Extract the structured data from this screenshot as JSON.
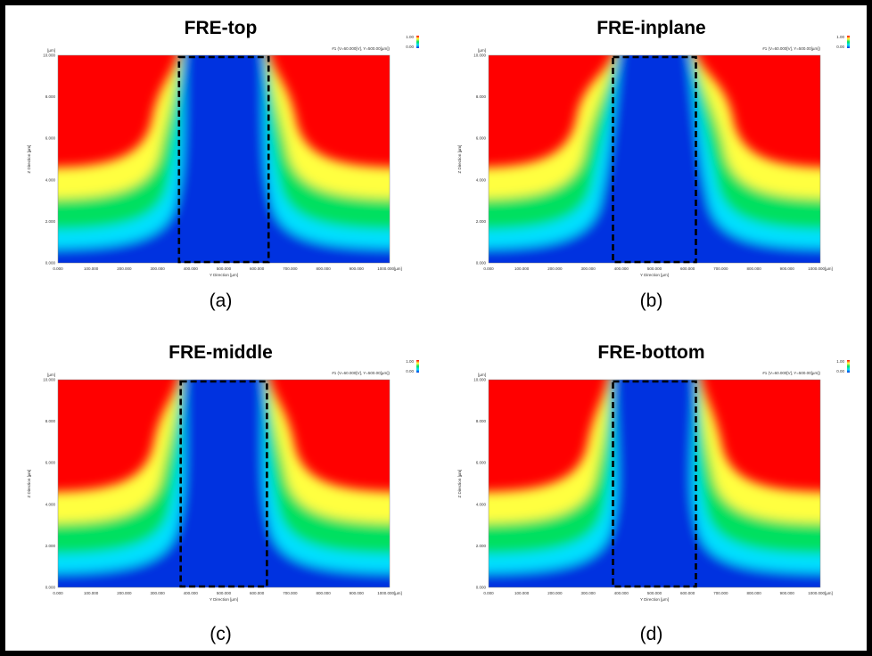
{
  "chart_data": [
    {
      "type": "heatmap",
      "title": "FRE-top",
      "caption": "(a)",
      "legend_text": "#1 (V=60.000[V], Y=500.00[µm])",
      "legend_range": [
        "1.00",
        "0.00"
      ],
      "xlabel": "Y Direction [µm]",
      "ylabel": "Z Direction [µm]",
      "x_unit": "[µm]",
      "y_unit": "[µm]",
      "xlim": [
        0,
        1000
      ],
      "ylim": [
        0,
        10
      ],
      "x_ticks": [
        "0.000",
        "100.000",
        "200.000",
        "300.000",
        "400.000",
        "500.000",
        "600.000",
        "700.000",
        "800.000",
        "900.000",
        "1000.000"
      ],
      "y_ticks": [
        "0.000",
        "2.000",
        "4.000",
        "6.000",
        "8.000",
        "10.000"
      ],
      "colorscale": [
        "#0030e0",
        "#00e0ff",
        "#00e060",
        "#ffff40",
        "#ff0000"
      ],
      "highlight_box": {
        "x": [
          365,
          635
        ],
        "y": [
          0,
          10
        ]
      },
      "notch_x": [
        340,
        385,
        615,
        660
      ]
    },
    {
      "type": "heatmap",
      "title": "FRE-inplane",
      "caption": "(b)",
      "legend_text": "#1 (V=60.000[V], Y=500.00[µm])",
      "legend_range": [
        "1.00",
        "0.00"
      ],
      "xlabel": "Y Direction [µm]",
      "ylabel": "Z Direction [µm]",
      "x_unit": "[µm]",
      "y_unit": "[µm]",
      "xlim": [
        0,
        1000
      ],
      "ylim": [
        0,
        10
      ],
      "x_ticks": [
        "0.000",
        "100.000",
        "200.000",
        "300.000",
        "400.000",
        "500.000",
        "600.000",
        "700.000",
        "800.000",
        "900.000",
        "1000.000"
      ],
      "y_ticks": [
        "0.000",
        "2.000",
        "4.000",
        "6.000",
        "8.000",
        "10.000"
      ],
      "colorscale": [
        "#0030e0",
        "#00e0ff",
        "#00e060",
        "#ffff40",
        "#ff0000"
      ],
      "highlight_box": {
        "x": [
          375,
          625
        ],
        "y": [
          0,
          10
        ]
      },
      "notch_x": [
        320,
        400,
        600,
        680
      ]
    },
    {
      "type": "heatmap",
      "title": "FRE-middle",
      "caption": "(c)",
      "legend_text": "#1 (V=60.000[V], Y=500.00[µm])",
      "legend_range": [
        "1.00",
        "0.00"
      ],
      "xlabel": "Y Direction [µm]",
      "ylabel": "Z Direction [µm]",
      "x_unit": "[µm]",
      "y_unit": "[µm]",
      "xlim": [
        0,
        1000
      ],
      "ylim": [
        0,
        10
      ],
      "x_ticks": [
        "0.000",
        "100.000",
        "200.000",
        "300.000",
        "400.000",
        "500.000",
        "600.000",
        "700.000",
        "800.000",
        "900.000",
        "1000.000"
      ],
      "y_ticks": [
        "0.000",
        "2.000",
        "4.000",
        "6.000",
        "8.000",
        "10.000"
      ],
      "colorscale": [
        "#0030e0",
        "#00e0ff",
        "#00e060",
        "#ffff40",
        "#ff0000"
      ],
      "highlight_box": {
        "x": [
          370,
          630
        ],
        "y": [
          0,
          10
        ]
      },
      "notch_x": [
        345,
        385,
        615,
        655
      ]
    },
    {
      "type": "heatmap",
      "title": "FRE-bottom",
      "caption": "(d)",
      "legend_text": "#1 (V=60.000[V], Y=500.00[µm])",
      "legend_range": [
        "1.00",
        "0.00"
      ],
      "xlabel": "Y Direction [µm]",
      "ylabel": "Z Direction [µm]",
      "x_unit": "[µm]",
      "y_unit": "[µm]",
      "xlim": [
        0,
        1000
      ],
      "ylim": [
        0,
        10
      ],
      "x_ticks": [
        "0.000",
        "100.000",
        "200.000",
        "300.000",
        "400.000",
        "500.000",
        "600.000",
        "700.000",
        "800.000",
        "900.000",
        "1000.000"
      ],
      "y_ticks": [
        "0.000",
        "2.000",
        "4.000",
        "6.000",
        "8.000",
        "10.000"
      ],
      "colorscale": [
        "#0030e0",
        "#00e0ff",
        "#00e060",
        "#ffff40",
        "#ff0000"
      ],
      "highlight_box": {
        "x": [
          375,
          625
        ],
        "y": [
          0,
          10
        ]
      },
      "notch_x": [
        355,
        380,
        620,
        645
      ]
    }
  ]
}
